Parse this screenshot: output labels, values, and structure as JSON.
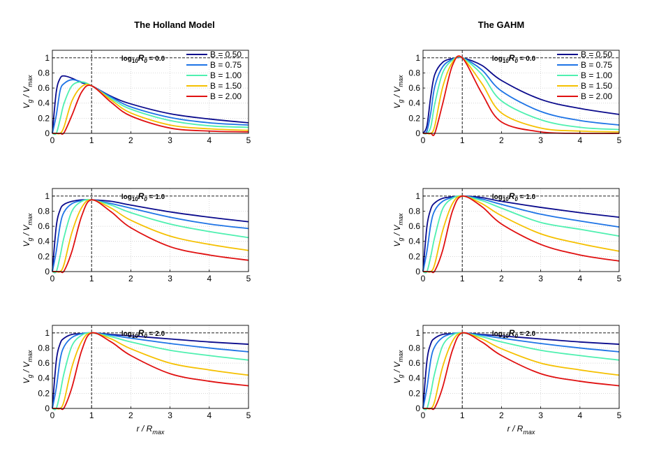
{
  "chart_data": {
    "type": "line",
    "column_titles": [
      "The Holland Model",
      "The GAHM"
    ],
    "annotation_prefix": "log",
    "annotation_sub": "10",
    "annotation_var": "R",
    "annotation_var_sub": "0",
    "annotation_values": [
      "0.0",
      "1.0",
      "2.0"
    ],
    "log10_R0": [
      0,
      1,
      2
    ],
    "ylabel": {
      "main": "V",
      "sub1": "g",
      "sep": " / V",
      "sub2": "max"
    },
    "xlabel": {
      "main": "r / R",
      "sub": "max"
    },
    "xlim": [
      0,
      5
    ],
    "ylim": [
      0,
      1.1
    ],
    "xticks": [
      "0",
      "1",
      "2",
      "3",
      "4",
      "5"
    ],
    "yticks": [
      "0",
      "0.2",
      "0.4",
      "0.6",
      "0.8",
      "1"
    ],
    "grid": true,
    "legend_placement": "top-right",
    "reference_lines": {
      "x": 1,
      "y": 1
    },
    "series": [
      {
        "name": "B = 0.50",
        "B": 0.5,
        "color": "#0a0a8c"
      },
      {
        "name": "B = 0.75",
        "B": 0.75,
        "color": "#1e74e6"
      },
      {
        "name": "B = 1.00",
        "B": 1.0,
        "color": "#4ff0b0"
      },
      {
        "name": "B = 1.50",
        "B": 1.5,
        "color": "#f5c000"
      },
      {
        "name": "B = 2.00",
        "B": 2.0,
        "color": "#e01010"
      }
    ],
    "samples_x": [
      0,
      0.1,
      0.2,
      0.3,
      0.5,
      0.75,
      1,
      1.5,
      2,
      3,
      4,
      5
    ],
    "panels": [
      {
        "model": "Holland",
        "log10_R0": 0,
        "annotation": "log10 R0 = 0.0",
        "series_values": [
          [
            0,
            0.55,
            0.73,
            0.76,
            0.73,
            0.67,
            0.63,
            0.49,
            0.39,
            0.26,
            0.19,
            0.14
          ],
          [
            0,
            0.24,
            0.57,
            0.66,
            0.71,
            0.68,
            0.63,
            0.48,
            0.35,
            0.21,
            0.14,
            0.11
          ],
          [
            0,
            0.0,
            0.19,
            0.4,
            0.63,
            0.68,
            0.63,
            0.46,
            0.32,
            0.17,
            0.1,
            0.08
          ],
          [
            0,
            0.0,
            0.0,
            0.09,
            0.43,
            0.62,
            0.63,
            0.44,
            0.27,
            0.11,
            0.06,
            0.04
          ],
          [
            0,
            0.0,
            0.0,
            0.01,
            0.24,
            0.55,
            0.63,
            0.41,
            0.23,
            0.07,
            0.03,
            0.02
          ]
        ]
      },
      {
        "model": "Holland",
        "log10_R0": 1,
        "annotation": "log10 R0 = 1.0",
        "series_values": [
          [
            0,
            0.6,
            0.82,
            0.89,
            0.93,
            0.95,
            0.95,
            0.93,
            0.88,
            0.79,
            0.72,
            0.66
          ],
          [
            0,
            0.27,
            0.62,
            0.79,
            0.9,
            0.94,
            0.95,
            0.9,
            0.84,
            0.72,
            0.63,
            0.57
          ],
          [
            0,
            0.0,
            0.21,
            0.46,
            0.8,
            0.93,
            0.95,
            0.88,
            0.78,
            0.63,
            0.53,
            0.45
          ],
          [
            0,
            0.0,
            0.0,
            0.1,
            0.52,
            0.85,
            0.95,
            0.84,
            0.68,
            0.47,
            0.36,
            0.28
          ],
          [
            0,
            0.0,
            0.0,
            0.01,
            0.27,
            0.74,
            0.95,
            0.79,
            0.58,
            0.33,
            0.22,
            0.15
          ]
        ]
      },
      {
        "model": "Holland",
        "log10_R0": 2,
        "annotation": "log10 R0 = 2.0",
        "series_values": [
          [
            0,
            0.63,
            0.86,
            0.93,
            0.98,
            0.99,
            1.0,
            0.98,
            0.96,
            0.92,
            0.88,
            0.85
          ],
          [
            0,
            0.27,
            0.65,
            0.82,
            0.94,
            0.99,
            1.0,
            0.97,
            0.93,
            0.86,
            0.8,
            0.75
          ],
          [
            0,
            0.0,
            0.21,
            0.47,
            0.83,
            0.97,
            1.0,
            0.95,
            0.88,
            0.77,
            0.7,
            0.64
          ],
          [
            0,
            0.0,
            0.0,
            0.1,
            0.55,
            0.89,
            1.0,
            0.92,
            0.79,
            0.6,
            0.51,
            0.44
          ],
          [
            0,
            0.0,
            0.0,
            0.01,
            0.28,
            0.77,
            1.0,
            0.88,
            0.7,
            0.46,
            0.36,
            0.3
          ]
        ]
      },
      {
        "model": "GAHM",
        "log10_R0": 0,
        "annotation": "log10 R0 = 0.0",
        "series_values": [
          [
            0,
            0.1,
            0.5,
            0.78,
            0.94,
            0.99,
            1.0,
            0.9,
            0.7,
            0.45,
            0.33,
            0.25
          ],
          [
            0,
            0.03,
            0.28,
            0.62,
            0.88,
            0.98,
            1.0,
            0.84,
            0.56,
            0.29,
            0.17,
            0.11
          ],
          [
            0,
            0.0,
            0.09,
            0.39,
            0.8,
            0.97,
            1.0,
            0.78,
            0.43,
            0.18,
            0.08,
            0.05
          ],
          [
            0,
            0.0,
            0.0,
            0.1,
            0.61,
            0.94,
            1.0,
            0.66,
            0.27,
            0.07,
            0.03,
            0.02
          ],
          [
            0,
            0.0,
            0.0,
            0.0,
            0.39,
            0.9,
            1.0,
            0.53,
            0.15,
            0.02,
            0.0,
            0.0
          ]
        ]
      },
      {
        "model": "GAHM",
        "log10_R0": 1,
        "annotation": "log10 R0 = 1.0",
        "series_values": [
          [
            0,
            0.6,
            0.83,
            0.91,
            0.97,
            0.99,
            1.0,
            0.98,
            0.93,
            0.85,
            0.78,
            0.72
          ],
          [
            0,
            0.27,
            0.63,
            0.81,
            0.93,
            0.98,
            1.0,
            0.96,
            0.89,
            0.76,
            0.67,
            0.59
          ],
          [
            0,
            0.0,
            0.21,
            0.46,
            0.83,
            0.97,
            1.0,
            0.94,
            0.84,
            0.65,
            0.56,
            0.47
          ],
          [
            0,
            0.0,
            0.0,
            0.1,
            0.54,
            0.9,
            1.0,
            0.9,
            0.74,
            0.5,
            0.37,
            0.27
          ],
          [
            0,
            0.0,
            0.0,
            0.01,
            0.28,
            0.8,
            1.0,
            0.86,
            0.63,
            0.36,
            0.22,
            0.14
          ]
        ]
      },
      {
        "model": "GAHM",
        "log10_R0": 2,
        "annotation": "log10 R0 = 2.0",
        "series_values": [
          [
            0,
            0.63,
            0.86,
            0.93,
            0.98,
            0.99,
            1.0,
            0.98,
            0.96,
            0.92,
            0.88,
            0.85
          ],
          [
            0,
            0.27,
            0.65,
            0.82,
            0.94,
            0.99,
            1.0,
            0.97,
            0.93,
            0.86,
            0.8,
            0.75
          ],
          [
            0,
            0.0,
            0.21,
            0.47,
            0.83,
            0.97,
            1.0,
            0.95,
            0.88,
            0.77,
            0.7,
            0.64
          ],
          [
            0,
            0.0,
            0.0,
            0.1,
            0.55,
            0.89,
            1.0,
            0.92,
            0.79,
            0.6,
            0.51,
            0.44
          ],
          [
            0,
            0.0,
            0.0,
            0.01,
            0.28,
            0.77,
            1.0,
            0.88,
            0.7,
            0.46,
            0.36,
            0.3
          ]
        ]
      }
    ]
  }
}
